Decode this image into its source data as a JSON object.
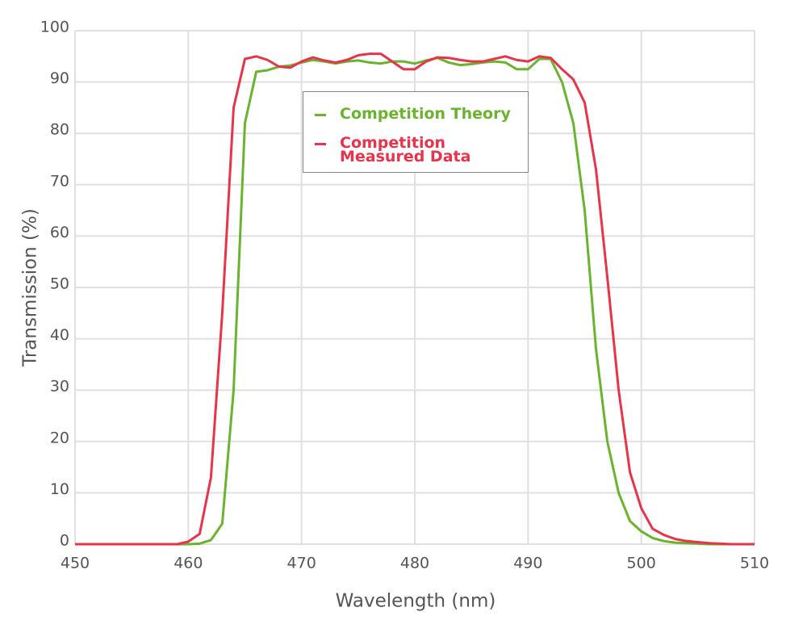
{
  "chart_data": {
    "type": "line",
    "x_label": "Wavelength (nm)",
    "y_label": "Transmission (%)",
    "x": [
      450,
      451,
      452,
      453,
      454,
      455,
      456,
      457,
      458,
      459,
      460,
      461,
      462,
      463,
      464,
      465,
      466,
      467,
      468,
      469,
      470,
      471,
      472,
      473,
      474,
      475,
      476,
      477,
      478,
      479,
      480,
      481,
      482,
      483,
      484,
      485,
      486,
      487,
      488,
      489,
      490,
      491,
      492,
      493,
      494,
      495,
      496,
      497,
      498,
      499,
      500,
      501,
      502,
      503,
      504,
      505,
      506,
      507,
      508,
      509,
      510
    ],
    "series": [
      {
        "name": "Competition Theory",
        "color": "#6ab42d",
        "values": [
          0,
          0,
          0,
          0,
          0,
          0,
          0,
          0,
          0,
          0,
          0,
          0.1,
          0.8,
          4,
          30,
          82,
          92,
          92.3,
          93,
          93.2,
          93.8,
          94.3,
          94,
          93.6,
          94,
          94.2,
          93.8,
          93.6,
          94,
          94,
          93.6,
          94.2,
          94.7,
          93.8,
          93.3,
          93.5,
          93.8,
          94,
          93.8,
          92.5,
          92.5,
          94.5,
          94.5,
          90,
          82,
          65,
          38,
          20,
          10,
          4.5,
          2.5,
          1.2,
          0.6,
          0.3,
          0.2,
          0.1,
          0,
          0,
          0,
          0,
          0
        ]
      },
      {
        "name": "Competition Measured Data",
        "color": "#e8334a",
        "values": [
          0,
          0,
          0,
          0,
          0,
          0,
          0,
          0,
          0,
          0,
          0.5,
          2,
          13,
          45,
          85,
          94.5,
          95,
          94.3,
          93,
          92.8,
          94,
          94.8,
          94.2,
          93.8,
          94.3,
          95.2,
          95.5,
          95.5,
          94,
          92.5,
          92.5,
          94,
          94.8,
          94.7,
          94.3,
          94,
          94,
          94.5,
          95,
          94.3,
          94,
          95,
          94.7,
          92.5,
          90.5,
          86,
          73,
          52,
          30,
          14,
          7,
          3,
          1.8,
          1,
          0.6,
          0.4,
          0.2,
          0.1,
          0,
          0,
          0
        ]
      }
    ],
    "xlim": [
      450,
      510
    ],
    "xticks": [
      450,
      460,
      470,
      480,
      490,
      500,
      510
    ],
    "ylim": [
      0,
      100
    ],
    "yticks": [
      0,
      10,
      20,
      30,
      40,
      50,
      60,
      70,
      80,
      90,
      100
    ],
    "grid": true
  }
}
